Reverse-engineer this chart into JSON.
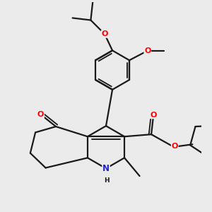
{
  "bg_color": "#ebebeb",
  "bond_color": "#1a1a1a",
  "atom_colors": {
    "O": "#ff0000",
    "N": "#2222cc",
    "C": "#1a1a1a"
  },
  "figsize": [
    3.0,
    3.0
  ],
  "dpi": 100
}
